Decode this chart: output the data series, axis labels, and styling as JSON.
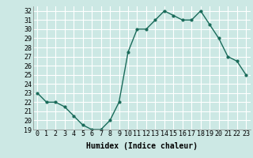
{
  "x": [
    0,
    1,
    2,
    3,
    4,
    5,
    6,
    7,
    8,
    9,
    10,
    11,
    12,
    13,
    14,
    15,
    16,
    17,
    18,
    19,
    20,
    21,
    22,
    23
  ],
  "y": [
    23,
    22,
    22,
    21.5,
    20.5,
    19.5,
    19,
    19,
    20,
    22,
    27.5,
    30,
    30,
    31,
    32,
    31.5,
    31,
    31,
    32,
    30.5,
    29,
    27,
    26.5,
    25
  ],
  "line_color": "#1a6b5a",
  "marker": "o",
  "marker_size": 2,
  "bg_color": "#cce8e4",
  "grid_color": "#ffffff",
  "xlabel": "Humidex (Indice chaleur)",
  "xlim": [
    -0.5,
    23.5
  ],
  "ylim": [
    19,
    32.5
  ],
  "yticks": [
    19,
    20,
    21,
    22,
    23,
    24,
    25,
    26,
    27,
    28,
    29,
    30,
    31,
    32
  ],
  "xticks": [
    0,
    1,
    2,
    3,
    4,
    5,
    6,
    7,
    8,
    9,
    10,
    11,
    12,
    13,
    14,
    15,
    16,
    17,
    18,
    19,
    20,
    21,
    22,
    23
  ],
  "tick_fontsize": 6,
  "xlabel_fontsize": 7,
  "line_width": 1.0
}
